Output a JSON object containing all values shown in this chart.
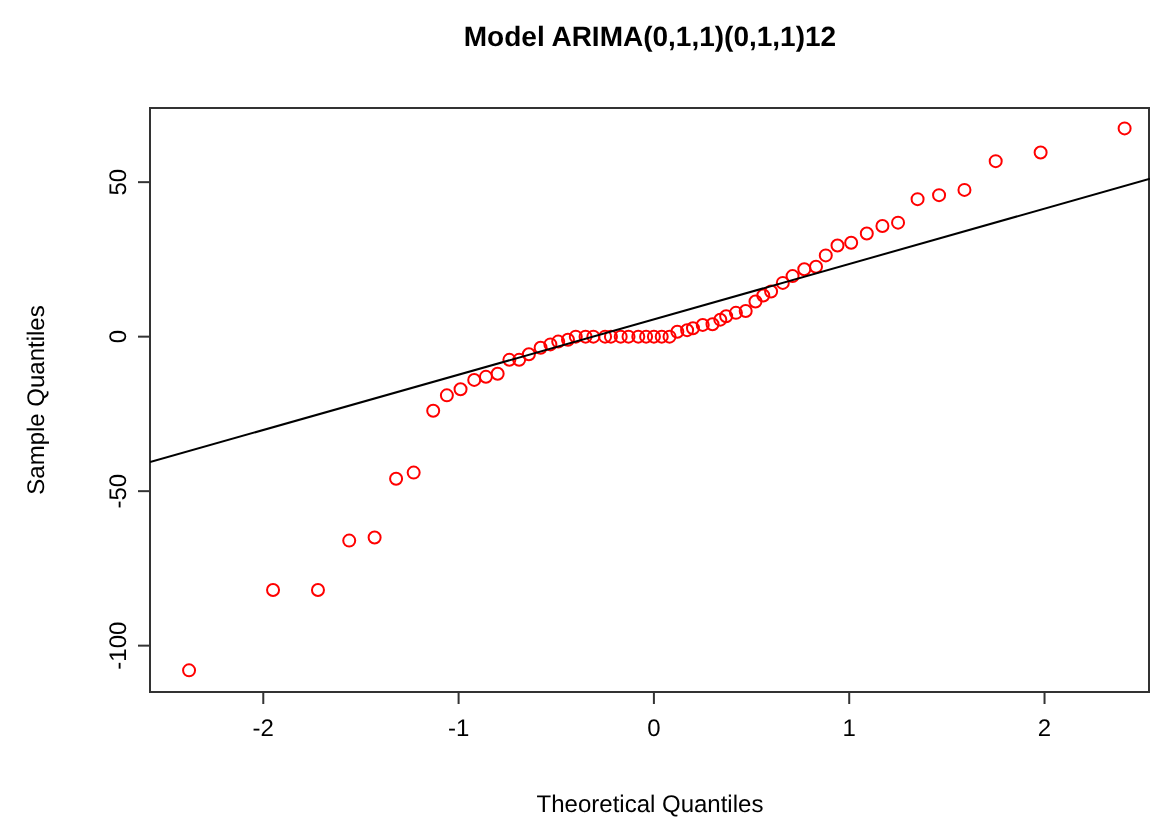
{
  "chart_data": {
    "type": "scatter",
    "title": "Model ARIMA(0,1,1)(0,1,1)12",
    "xlabel": "Theoretical Quantiles",
    "ylabel": "Sample Quantiles",
    "xlim": [
      -2.58,
      2.54
    ],
    "ylim": [
      -115,
      74
    ],
    "xticks": [
      -2,
      -1,
      0,
      1,
      2
    ],
    "yticks": [
      -100,
      -50,
      0,
      50
    ],
    "grid": false,
    "marker": "circle",
    "series": [
      {
        "color": "#ff0000",
        "x": [
          -2.38,
          -1.95,
          -1.72,
          -1.56,
          -1.43,
          -1.32,
          -1.23,
          -1.13,
          -1.06,
          -0.99,
          -0.92,
          -0.86,
          -0.8,
          -0.74,
          -0.69,
          -0.64,
          -0.58,
          -0.53,
          -0.49,
          -0.44,
          -0.4,
          -0.35,
          -0.31,
          -0.25,
          -0.22,
          -0.17,
          -0.13,
          -0.08,
          -0.04,
          0,
          0.04,
          0.08,
          0.12,
          0.17,
          0.2,
          0.25,
          0.3,
          0.34,
          0.37,
          0.42,
          0.47,
          0.52,
          0.56,
          0.6,
          0.66,
          0.71,
          0.77,
          0.83,
          0.88,
          0.94,
          1.01,
          1.09,
          1.17,
          1.25,
          1.35,
          1.46,
          1.59,
          1.75,
          1.98,
          2.41
        ],
        "values": [
          -108,
          -82,
          -82,
          -66,
          -65,
          -46,
          -44,
          -24,
          -19,
          -17,
          -14,
          -13,
          -12,
          -7.5,
          -7.5,
          -5.7,
          -3.6,
          -2.5,
          -1.6,
          -1,
          0,
          0,
          0,
          0,
          0,
          0,
          0,
          0,
          0,
          0,
          0,
          0,
          1.6,
          2.1,
          2.7,
          3.8,
          4,
          5.5,
          6.6,
          7.7,
          8.3,
          11.4,
          13.3,
          14.6,
          17.4,
          19.6,
          21.8,
          22.6,
          26.3,
          29.5,
          30.4,
          33.4,
          35.8,
          36.9,
          44.5,
          45.8,
          47.5,
          56.8,
          59.6,
          67.4
        ]
      },
      {
        "type": "line",
        "color": "#000000",
        "line_style": "solid",
        "marker": "none",
        "x": [
          -2.58,
          2.54
        ],
        "values": [
          -40.6,
          51.1
        ]
      }
    ]
  }
}
